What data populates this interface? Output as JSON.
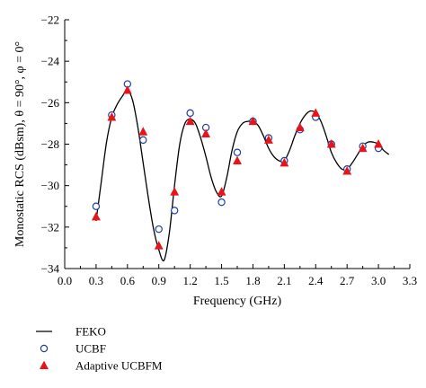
{
  "chart_data": {
    "type": "line",
    "xlabel": "Frequency (GHz)",
    "ylabel": "Monostatic RCS (dBsm), θ = 90°, φ = 0°",
    "xlim": [
      0.0,
      3.3
    ],
    "ylim": [
      -34,
      -22
    ],
    "xticks": [
      "0.0",
      "0.3",
      "0.6",
      "0.9",
      "1.2",
      "1.5",
      "1.8",
      "2.1",
      "2.4",
      "2.7",
      "3.0",
      "3.3"
    ],
    "yticks": [
      "−34",
      "−32",
      "−30",
      "−28",
      "−26",
      "−24",
      "−22"
    ],
    "legend_position": "bottom-left, below plot",
    "series": [
      {
        "name": "FEKO",
        "style": "line",
        "color": "#000000",
        "x": [
          0.3,
          0.35,
          0.4,
          0.45,
          0.5,
          0.55,
          0.6,
          0.65,
          0.7,
          0.75,
          0.8,
          0.85,
          0.9,
          0.95,
          1.0,
          1.05,
          1.1,
          1.15,
          1.2,
          1.25,
          1.3,
          1.35,
          1.4,
          1.45,
          1.5,
          1.55,
          1.6,
          1.65,
          1.7,
          1.75,
          1.8,
          1.85,
          1.9,
          1.95,
          2.0,
          2.05,
          2.1,
          2.15,
          2.2,
          2.25,
          2.3,
          2.35,
          2.4,
          2.45,
          2.5,
          2.55,
          2.6,
          2.65,
          2.7,
          2.75,
          2.8,
          2.85,
          2.9,
          2.95,
          3.0,
          3.05,
          3.1
        ],
        "y": [
          -31.7,
          -29.8,
          -27.9,
          -26.7,
          -26.1,
          -25.7,
          -25.4,
          -25.9,
          -27.2,
          -28.9,
          -30.6,
          -32.1,
          -33.1,
          -33.6,
          -32.3,
          -30.0,
          -28.0,
          -27.0,
          -26.8,
          -27.0,
          -27.7,
          -28.6,
          -29.6,
          -30.3,
          -30.5,
          -29.6,
          -28.3,
          -27.4,
          -27.0,
          -26.9,
          -26.9,
          -27.1,
          -27.6,
          -28.2,
          -28.6,
          -28.8,
          -28.8,
          -28.3,
          -27.6,
          -27.0,
          -26.6,
          -26.4,
          -26.5,
          -26.9,
          -27.6,
          -28.4,
          -28.9,
          -29.2,
          -29.2,
          -28.9,
          -28.5,
          -28.1,
          -27.9,
          -27.9,
          -28.0,
          -28.3,
          -28.5
        ]
      },
      {
        "name": "UCBF",
        "style": "open-circle",
        "color": "#1f3f9f",
        "x": [
          0.3,
          0.45,
          0.6,
          0.75,
          0.9,
          1.05,
          1.2,
          1.35,
          1.5,
          1.65,
          1.8,
          1.95,
          2.1,
          2.25,
          2.4,
          2.55,
          2.7,
          2.85,
          3.0
        ],
        "y": [
          -31.0,
          -26.6,
          -25.1,
          -27.8,
          -32.1,
          -31.2,
          -26.5,
          -27.2,
          -30.8,
          -28.4,
          -26.9,
          -27.7,
          -28.8,
          -27.3,
          -26.7,
          -28.0,
          -29.2,
          -28.1,
          -28.2
        ]
      },
      {
        "name": "Adaptive UCBFM",
        "style": "filled-triangle",
        "color": "#e8141a",
        "x": [
          0.3,
          0.45,
          0.6,
          0.75,
          0.9,
          1.05,
          1.2,
          1.35,
          1.5,
          1.65,
          1.8,
          1.95,
          2.1,
          2.25,
          2.4,
          2.55,
          2.7,
          2.85,
          3.0
        ],
        "y": [
          -31.5,
          -26.7,
          -25.4,
          -27.4,
          -32.9,
          -30.3,
          -26.9,
          -27.5,
          -30.3,
          -28.8,
          -26.9,
          -27.8,
          -28.9,
          -27.2,
          -26.5,
          -28.0,
          -29.3,
          -28.2,
          -28.0
        ]
      }
    ]
  }
}
